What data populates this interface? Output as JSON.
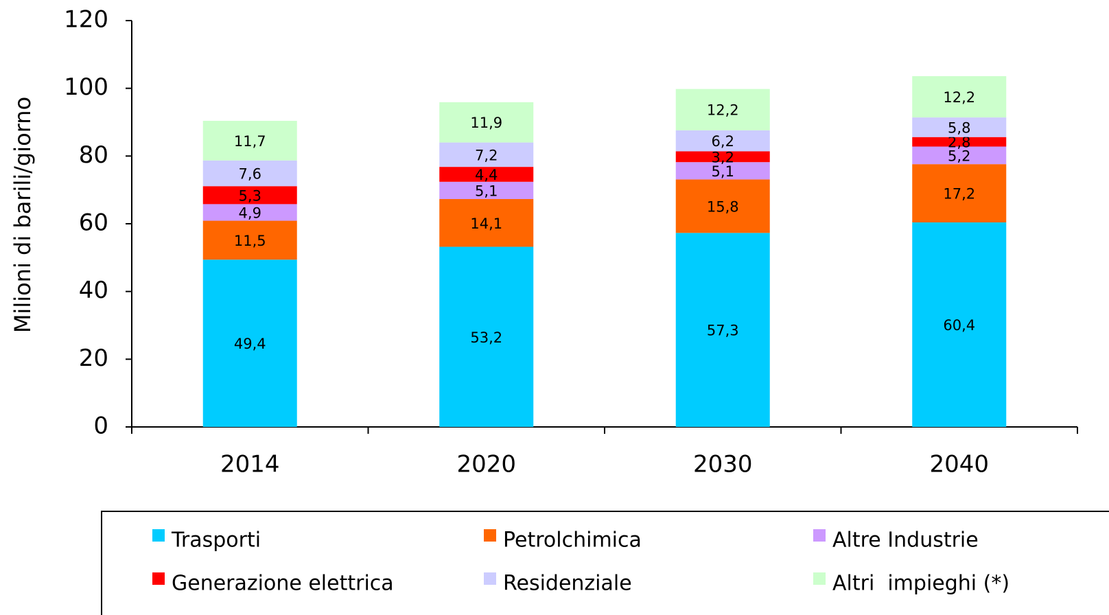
{
  "chart_data": {
    "type": "stacked_bar",
    "y_axis_label": "Milioni di barili/giorno",
    "categories": [
      "2014",
      "2020",
      "2030",
      "2040"
    ],
    "ylim": [
      0,
      120
    ],
    "yticks": [
      0,
      20,
      40,
      60,
      80,
      100,
      120
    ],
    "legend_position": "bottom",
    "series": [
      {
        "name": "Trasporti",
        "color": "#00ccff",
        "values": [
          49.4,
          53.2,
          57.3,
          60.4
        ],
        "value_labels": [
          "49,4",
          "53,2",
          "57,3",
          "60,4"
        ]
      },
      {
        "name": "Petrolchimica",
        "color": "#ff6600",
        "values": [
          11.5,
          14.1,
          15.8,
          17.2
        ],
        "value_labels": [
          "11,5",
          "14,1",
          "15,8",
          "17,2"
        ]
      },
      {
        "name": "Altre Industrie",
        "color": "#cc99ff",
        "values": [
          4.9,
          5.1,
          5.1,
          5.2
        ],
        "value_labels": [
          "4,9",
          "5,1",
          "5,1",
          "5,2"
        ]
      },
      {
        "name": "Generazione elettrica",
        "color": "#ff0000",
        "values": [
          5.3,
          4.4,
          3.2,
          2.8
        ],
        "value_labels": [
          "5,3",
          "4,4",
          "3,2",
          "2,8"
        ]
      },
      {
        "name": "Residenziale",
        "color": "#ccccff",
        "values": [
          7.6,
          7.2,
          6.2,
          5.8
        ],
        "value_labels": [
          "7,6",
          "7,2",
          "6,2",
          "5,8"
        ]
      },
      {
        "name": "Altri  impieghi (*)",
        "color": "#ccffcc",
        "values": [
          11.7,
          11.9,
          12.2,
          12.2
        ],
        "value_labels": [
          "11,7",
          "11,9",
          "12,2",
          "12,2"
        ]
      }
    ]
  }
}
